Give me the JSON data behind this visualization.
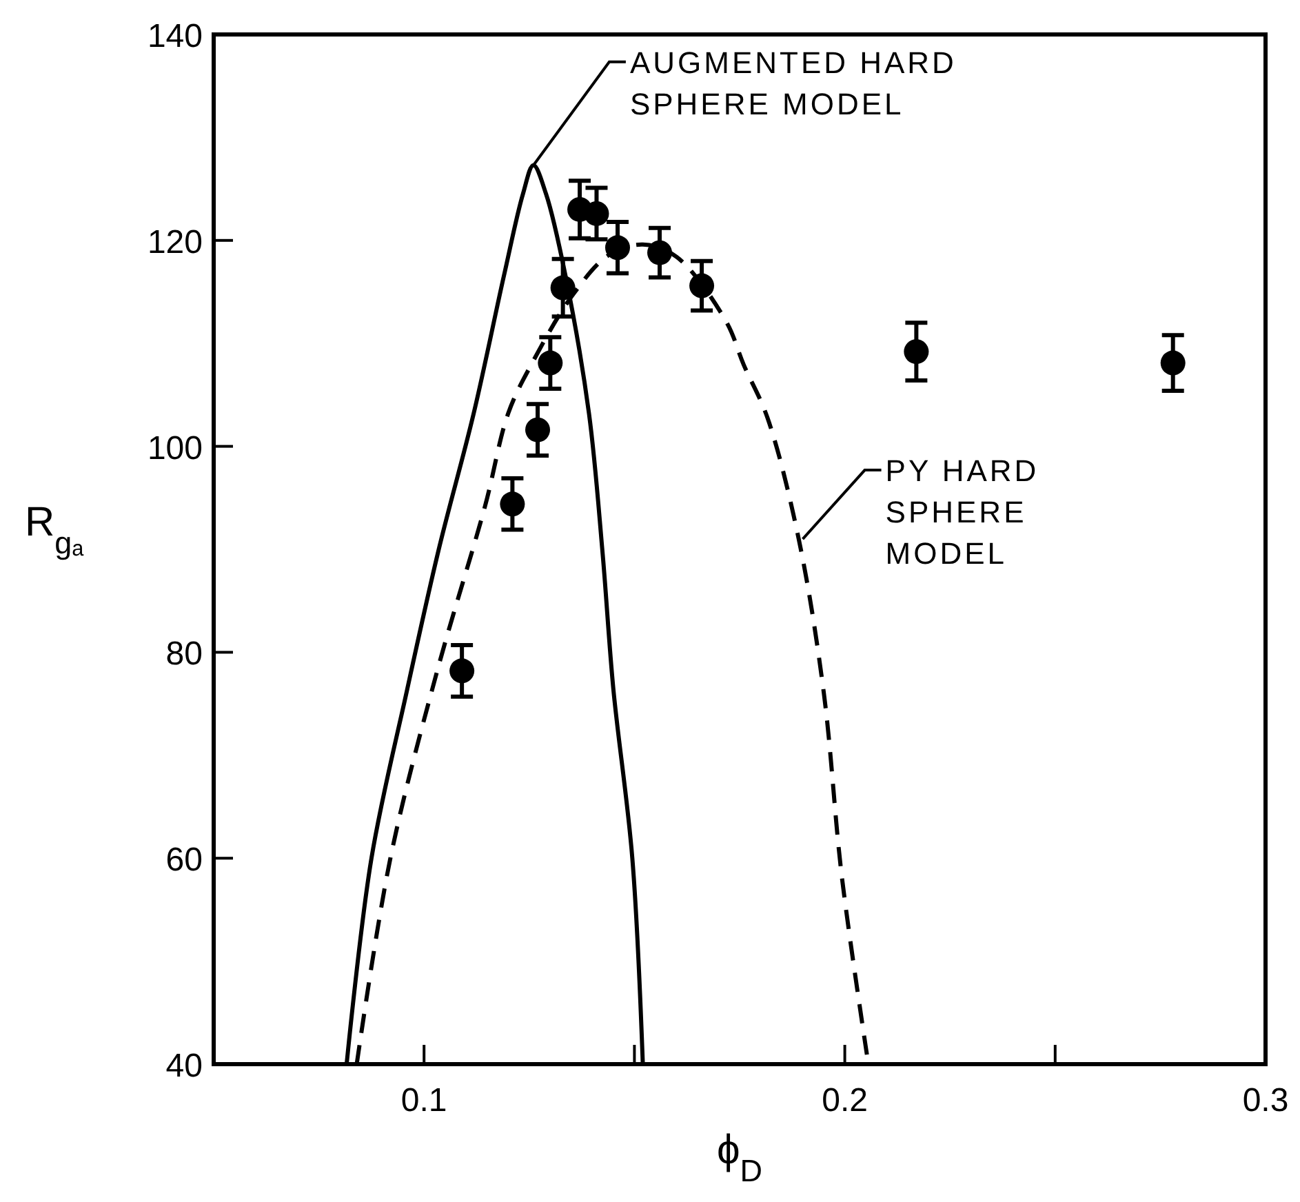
{
  "chart_data": {
    "type": "scatter",
    "xlabel": "ϕ$_{D}$",
    "ylabel": "R$_{gₐ}$",
    "xlim": [
      0.05,
      0.3
    ],
    "ylim": [
      40,
      140
    ],
    "xticks": [
      0.1,
      {
        "value": 0.15,
        "label": null
      },
      0.2,
      {
        "value": 0.25,
        "label": null
      },
      0.3
    ],
    "yticks": [
      40,
      60,
      80,
      100,
      120,
      140
    ],
    "grid": false,
    "annotations": [
      {
        "text": "AUGMENTED HARD SPHERE MODEL",
        "x": 0.126,
        "y": 127.3
      },
      {
        "text": "PY HARD SPHERE MODEL",
        "x": 0.19,
        "y": 91
      }
    ],
    "series": [
      {
        "color": "#000000",
        "marker": "circle",
        "x": [
          0.109,
          0.121,
          0.127,
          0.13,
          0.133,
          0.137,
          0.141,
          0.146,
          0.156,
          0.166,
          0.217,
          0.278
        ],
        "values": [
          78.2,
          94.4,
          101.6,
          108.1,
          115.4,
          123.0,
          122.6,
          119.3,
          118.8,
          115.6,
          109.2,
          108.1
        ],
        "errors": [
          2.5,
          2.5,
          2.5,
          2.5,
          2.8,
          2.8,
          2.5,
          2.5,
          2.4,
          2.4,
          2.8,
          2.7
        ]
      },
      {
        "type": "line",
        "color": "#000000",
        "line_style": "solid",
        "marker": "none",
        "x": [
          0.0816,
          0.0875,
          0.096,
          0.1035,
          0.1118,
          0.119,
          0.1235,
          0.126,
          0.129,
          0.1336,
          0.1392,
          0.1424,
          0.145,
          0.1495,
          0.152
        ],
        "values": [
          40,
          60,
          76.4,
          90,
          103.2,
          116.6,
          124.5,
          127.3,
          124.5,
          116.6,
          103.2,
          89.8,
          76.4,
          60,
          40
        ]
      },
      {
        "type": "line",
        "color": "#000000",
        "line_style": "dashed",
        "marker": "none",
        "x": [
          0.084,
          0.092,
          0.103,
          0.1145,
          0.12,
          0.1257,
          0.1355,
          0.144,
          0.152,
          0.16,
          0.1717,
          0.176,
          0.1816,
          0.189,
          0.195,
          0.1993,
          0.2056
        ],
        "values": [
          40,
          60,
          78,
          94.2,
          103.2,
          108.1,
          114.8,
          118.6,
          119.6,
          118.4,
          112.2,
          107.9,
          102.8,
          91.1,
          76.1,
          58.2,
          40
        ]
      }
    ]
  }
}
